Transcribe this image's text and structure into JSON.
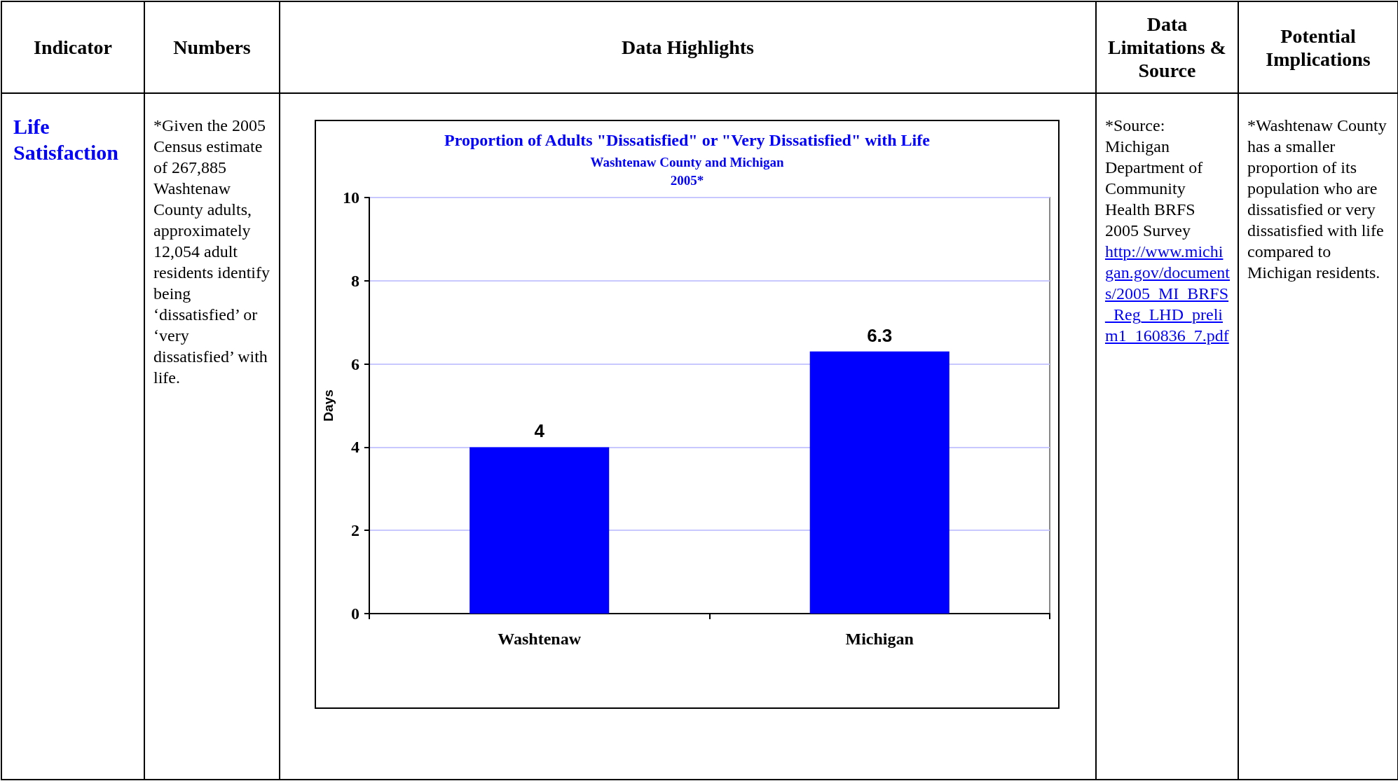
{
  "chart_data": {
    "type": "bar",
    "title": "Proportion of Adults \"Dissatisfied\" or \"Very Dissatisfied\" with Life",
    "subtitle": "Washtenaw County and Michigan\n2005*",
    "ylabel": "Days",
    "categories": [
      "Washtenaw",
      "Michigan"
    ],
    "values": [
      4,
      6.3
    ],
    "color": "#0000ff",
    "ylim": [
      0,
      10
    ],
    "yticks": [
      0,
      2,
      4,
      6,
      8,
      10
    ],
    "grid": "y",
    "data_labels": true,
    "annotations": [
      "Indicator",
      "Numbers",
      "Data Highlights",
      "Data Limitations & Source",
      "Potential Implications",
      "Life Satisfaction",
      "*Given the 2005 Census estimate of 267,885 Washtenaw County adults, approximately 12,054 adult residents identify being ‘dissatisfied’ or ‘very dissatisfied’ with life.",
      "*Source: Michigan Department of Community Health BRFS 2005 Survey",
      "http://www.michigan.gov/documents/2005_MI_BRFS_Reg_LHD_prelim1_160836_7.pdf",
      "*Washtenaw County has a smaller proportion of its population who are dissatisfied or very dissatisfied with life compared to Michigan residents."
    ]
  }
}
